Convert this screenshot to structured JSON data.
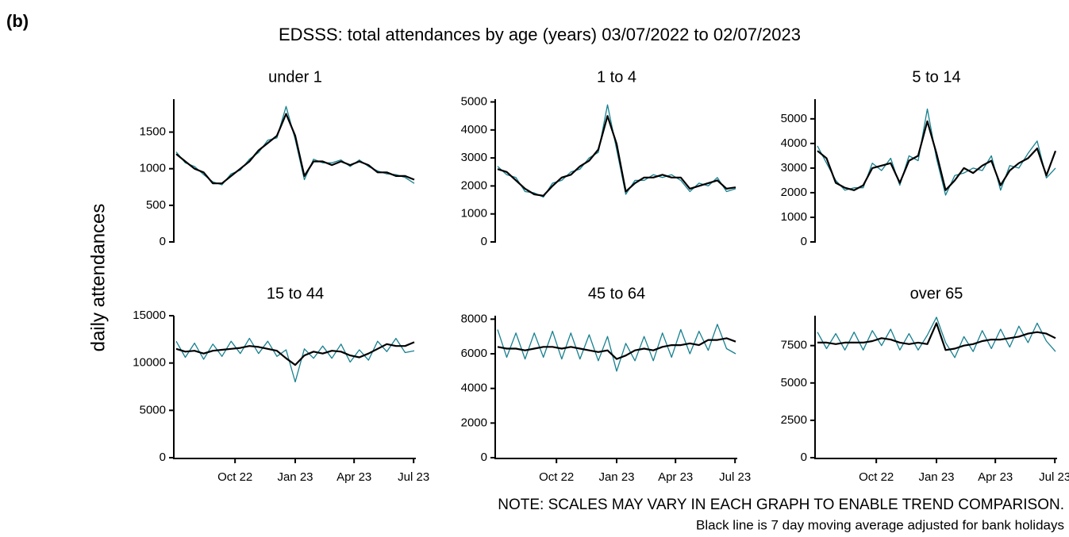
{
  "panel_label": "(b)",
  "title": "EDSSS: total attendances by age (years) 03/07/2022 to 02/07/2023",
  "y_label": "daily attendances",
  "notes": [
    "NOTE: SCALES MAY VARY IN EACH GRAPH TO ENABLE TREND COMPARISON.",
    "Black line is 7 day moving average adjusted for bank holidays"
  ],
  "chart_data": [
    {
      "type": "line",
      "title": "under 1",
      "x": [
        "2022-07-03",
        "2022-07-17",
        "2022-07-31",
        "2022-08-14",
        "2022-08-28",
        "2022-09-11",
        "2022-09-25",
        "2022-10-09",
        "2022-10-23",
        "2022-11-06",
        "2022-11-20",
        "2022-12-04",
        "2022-12-18",
        "2023-01-01",
        "2023-01-15",
        "2023-01-29",
        "2023-02-12",
        "2023-02-26",
        "2023-03-12",
        "2023-03-26",
        "2023-04-09",
        "2023-04-23",
        "2023-05-07",
        "2023-05-21",
        "2023-06-04",
        "2023-06-18",
        "2023-07-02"
      ],
      "xlim": [
        "2022-07-03",
        "2023-07-02"
      ],
      "xticks": [
        {
          "value": "2022-10-01",
          "label": "Oct 22"
        },
        {
          "value": "2023-01-01",
          "label": "Jan 23"
        },
        {
          "value": "2023-04-01",
          "label": "Apr 23"
        },
        {
          "value": "2023-07-01",
          "label": "Jul 23"
        }
      ],
      "ylim": [
        0,
        1950
      ],
      "yticks": [
        0,
        500,
        1000,
        1500
      ],
      "series": [
        {
          "color": "#17808f",
          "values": [
            1230,
            1080,
            1030,
            920,
            820,
            780,
            930,
            980,
            1130,
            1220,
            1390,
            1420,
            1850,
            1400,
            850,
            1130,
            1080,
            1080,
            1120,
            1030,
            1120,
            1030,
            970,
            930,
            920,
            880,
            800
          ]
        },
        {
          "color": "#000000",
          "values": [
            1200,
            1100,
            1000,
            950,
            800,
            800,
            900,
            1000,
            1100,
            1250,
            1350,
            1450,
            1750,
            1450,
            900,
            1100,
            1100,
            1050,
            1100,
            1050,
            1100,
            1050,
            950,
            950,
            900,
            900,
            850
          ]
        }
      ]
    },
    {
      "type": "line",
      "title": "1 to 4",
      "x": [
        "2022-07-03",
        "2022-07-17",
        "2022-07-31",
        "2022-08-14",
        "2022-08-28",
        "2022-09-11",
        "2022-09-25",
        "2022-10-09",
        "2022-10-23",
        "2022-11-06",
        "2022-11-20",
        "2022-12-04",
        "2022-12-18",
        "2023-01-01",
        "2023-01-15",
        "2023-01-29",
        "2023-02-12",
        "2023-02-26",
        "2023-03-12",
        "2023-03-26",
        "2023-04-09",
        "2023-04-23",
        "2023-05-07",
        "2023-05-21",
        "2023-06-04",
        "2023-06-18",
        "2023-07-02"
      ],
      "xlim": [
        "2022-07-03",
        "2023-07-02"
      ],
      "xticks": [
        {
          "value": "2022-10-01",
          "label": "Oct 22"
        },
        {
          "value": "2023-01-01",
          "label": "Jan 23"
        },
        {
          "value": "2023-04-01",
          "label": "Apr 23"
        },
        {
          "value": "2023-07-01",
          "label": "Jul 23"
        }
      ],
      "ylim": [
        0,
        5100
      ],
      "yticks": [
        0,
        1000,
        2000,
        3000,
        4000,
        5000
      ],
      "series": [
        {
          "color": "#17808f",
          "values": [
            2700,
            2400,
            2300,
            1800,
            1750,
            1600,
            2100,
            2200,
            2500,
            2600,
            3000,
            3200,
            4900,
            3300,
            1700,
            2200,
            2200,
            2400,
            2300,
            2400,
            2200,
            1800,
            2100,
            2000,
            2300,
            1800,
            1900
          ]
        },
        {
          "color": "#000000",
          "values": [
            2600,
            2500,
            2200,
            1900,
            1700,
            1650,
            2000,
            2300,
            2400,
            2700,
            2900,
            3300,
            4500,
            3500,
            1800,
            2100,
            2300,
            2300,
            2400,
            2300,
            2300,
            1900,
            2000,
            2100,
            2200,
            1900,
            1950
          ]
        }
      ]
    },
    {
      "type": "line",
      "title": "5 to 14",
      "x": [
        "2022-07-03",
        "2022-07-17",
        "2022-07-31",
        "2022-08-14",
        "2022-08-28",
        "2022-09-11",
        "2022-09-25",
        "2022-10-09",
        "2022-10-23",
        "2022-11-06",
        "2022-11-20",
        "2022-12-04",
        "2022-12-18",
        "2023-01-01",
        "2023-01-15",
        "2023-01-29",
        "2023-02-12",
        "2023-02-26",
        "2023-03-12",
        "2023-03-26",
        "2023-04-09",
        "2023-04-23",
        "2023-05-07",
        "2023-05-21",
        "2023-06-04",
        "2023-06-18",
        "2023-07-02"
      ],
      "xlim": [
        "2022-07-03",
        "2023-07-02"
      ],
      "xticks": [
        {
          "value": "2022-10-01",
          "label": "Oct 22"
        },
        {
          "value": "2023-01-01",
          "label": "Jan 23"
        },
        {
          "value": "2023-04-01",
          "label": "Apr 23"
        },
        {
          "value": "2023-07-01",
          "label": "Jul 23"
        }
      ],
      "ylim": [
        0,
        5800
      ],
      "yticks": [
        0,
        1000,
        2000,
        3000,
        4000,
        5000
      ],
      "series": [
        {
          "color": "#17808f",
          "values": [
            3900,
            3200,
            2500,
            2100,
            2200,
            2200,
            3200,
            2900,
            3400,
            2300,
            3500,
            3300,
            5400,
            3400,
            1900,
            2700,
            2800,
            3000,
            2900,
            3500,
            2100,
            3100,
            3000,
            3600,
            4100,
            2600,
            3000
          ]
        },
        {
          "color": "#000000",
          "values": [
            3700,
            3400,
            2400,
            2200,
            2100,
            2300,
            3000,
            3100,
            3200,
            2400,
            3300,
            3500,
            4900,
            3600,
            2100,
            2500,
            3000,
            2800,
            3100,
            3300,
            2300,
            2900,
            3200,
            3400,
            3800,
            2700,
            3700
          ]
        }
      ]
    },
    {
      "type": "line",
      "title": "15 to 44",
      "x": [
        "2022-07-03",
        "2022-07-17",
        "2022-07-31",
        "2022-08-14",
        "2022-08-28",
        "2022-09-11",
        "2022-09-25",
        "2022-10-09",
        "2022-10-23",
        "2022-11-06",
        "2022-11-20",
        "2022-12-04",
        "2022-12-18",
        "2023-01-01",
        "2023-01-15",
        "2023-01-29",
        "2023-02-12",
        "2023-02-26",
        "2023-03-12",
        "2023-03-26",
        "2023-04-09",
        "2023-04-23",
        "2023-05-07",
        "2023-05-21",
        "2023-06-04",
        "2023-06-18",
        "2023-07-02"
      ],
      "xlim": [
        "2022-07-03",
        "2023-07-02"
      ],
      "xticks": [
        {
          "value": "2022-10-01",
          "label": "Oct 22"
        },
        {
          "value": "2023-01-01",
          "label": "Jan 23"
        },
        {
          "value": "2023-04-01",
          "label": "Apr 23"
        },
        {
          "value": "2023-07-01",
          "label": "Jul 23"
        }
      ],
      "ylim": [
        0,
        15000
      ],
      "yticks": [
        0,
        5000,
        10000,
        15000
      ],
      "series": [
        {
          "color": "#17808f",
          "values": [
            12300,
            10600,
            12100,
            10400,
            12000,
            10700,
            12300,
            11000,
            12600,
            11000,
            12300,
            10700,
            11400,
            8000,
            11500,
            10500,
            11800,
            10500,
            12000,
            10100,
            11400,
            10300,
            12300,
            11200,
            12600,
            11100,
            11300
          ]
        },
        {
          "color": "#000000",
          "values": [
            11500,
            11200,
            11300,
            11000,
            11300,
            11400,
            11500,
            11600,
            11800,
            11700,
            11500,
            11300,
            10500,
            9800,
            10800,
            11200,
            11000,
            11300,
            11200,
            10800,
            10600,
            11000,
            11500,
            12000,
            11800,
            11800,
            12200
          ]
        }
      ]
    },
    {
      "type": "line",
      "title": "45 to 64",
      "x": [
        "2022-07-03",
        "2022-07-17",
        "2022-07-31",
        "2022-08-14",
        "2022-08-28",
        "2022-09-11",
        "2022-09-25",
        "2022-10-09",
        "2022-10-23",
        "2022-11-06",
        "2022-11-20",
        "2022-12-04",
        "2022-12-18",
        "2023-01-01",
        "2023-01-15",
        "2023-01-29",
        "2023-02-12",
        "2023-02-26",
        "2023-03-12",
        "2023-03-26",
        "2023-04-09",
        "2023-04-23",
        "2023-05-07",
        "2023-05-21",
        "2023-06-04",
        "2023-06-18",
        "2023-07-02"
      ],
      "xlim": [
        "2022-07-03",
        "2023-07-02"
      ],
      "xticks": [
        {
          "value": "2022-10-01",
          "label": "Oct 22"
        },
        {
          "value": "2023-01-01",
          "label": "Jan 23"
        },
        {
          "value": "2023-04-01",
          "label": "Apr 23"
        },
        {
          "value": "2023-07-01",
          "label": "Jul 23"
        }
      ],
      "ylim": [
        0,
        8200
      ],
      "yticks": [
        0,
        2000,
        4000,
        6000,
        8000
      ],
      "series": [
        {
          "color": "#17808f",
          "values": [
            7400,
            5800,
            7200,
            5700,
            7200,
            5800,
            7300,
            5700,
            7200,
            5700,
            7100,
            5600,
            7000,
            5000,
            6600,
            5600,
            7000,
            5600,
            7200,
            5800,
            7400,
            6000,
            7300,
            6200,
            7700,
            6300,
            6000
          ]
        },
        {
          "color": "#000000",
          "values": [
            6400,
            6300,
            6300,
            6200,
            6300,
            6400,
            6400,
            6300,
            6400,
            6300,
            6200,
            6100,
            6200,
            5700,
            5900,
            6200,
            6300,
            6200,
            6400,
            6500,
            6500,
            6600,
            6500,
            6800,
            6800,
            6900,
            6700
          ]
        }
      ]
    },
    {
      "type": "line",
      "title": "over 65",
      "x": [
        "2022-07-03",
        "2022-07-17",
        "2022-07-31",
        "2022-08-14",
        "2022-08-28",
        "2022-09-11",
        "2022-09-25",
        "2022-10-09",
        "2022-10-23",
        "2022-11-06",
        "2022-11-20",
        "2022-12-04",
        "2022-12-18",
        "2023-01-01",
        "2023-01-15",
        "2023-01-29",
        "2023-02-12",
        "2023-02-26",
        "2023-03-12",
        "2023-03-26",
        "2023-04-09",
        "2023-04-23",
        "2023-05-07",
        "2023-05-21",
        "2023-06-04",
        "2023-06-18",
        "2023-07-02"
      ],
      "xlim": [
        "2022-07-03",
        "2023-07-02"
      ],
      "xticks": [
        {
          "value": "2022-10-01",
          "label": "Oct 22"
        },
        {
          "value": "2023-01-01",
          "label": "Jan 23"
        },
        {
          "value": "2023-04-01",
          "label": "Apr 23"
        },
        {
          "value": "2023-07-01",
          "label": "Jul 23"
        }
      ],
      "ylim": [
        0,
        9500
      ],
      "yticks": [
        0,
        2500,
        5000,
        7500
      ],
      "series": [
        {
          "color": "#17808f",
          "values": [
            8400,
            7300,
            8300,
            7200,
            8400,
            7200,
            8500,
            7500,
            8600,
            7200,
            8300,
            7200,
            8200,
            9400,
            7700,
            6700,
            8100,
            7100,
            8500,
            7300,
            8600,
            7400,
            8800,
            7700,
            9000,
            7800,
            7100
          ]
        },
        {
          "color": "#000000",
          "values": [
            7700,
            7700,
            7600,
            7700,
            7700,
            7700,
            7800,
            8000,
            7900,
            7700,
            7600,
            7700,
            7600,
            9000,
            7200,
            7300,
            7500,
            7600,
            7800,
            7900,
            7900,
            8000,
            8100,
            8300,
            8400,
            8300,
            8000
          ]
        }
      ]
    }
  ]
}
